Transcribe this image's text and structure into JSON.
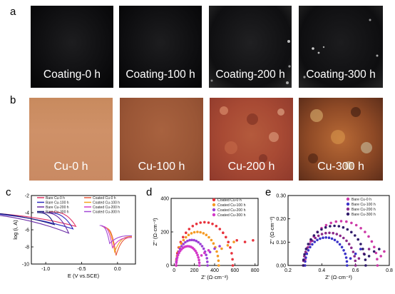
{
  "panels": {
    "a": {
      "letter": "a",
      "labels": [
        "Coating-0 h",
        "Coating-100 h",
        "Coating-200 h",
        "Coating-300 h"
      ]
    },
    "b": {
      "letter": "b",
      "labels": [
        "Cu-0 h",
        "Cu-100 h",
        "Cu-200 h",
        "Cu-300 h"
      ]
    },
    "c": {
      "letter": "c"
    },
    "d": {
      "letter": "d"
    },
    "e": {
      "letter": "e"
    }
  },
  "chart_data": [
    {
      "panel": "c",
      "type": "line",
      "xlabel": "E (V vs.SCE)",
      "ylabel": "log (i, A)",
      "xlim": [
        -1.2,
        0.25
      ],
      "ylim": [
        -10,
        -2
      ],
      "xticks": [
        -1.0,
        -0.5,
        0.0
      ],
      "xtick_labels": [
        "-1.0",
        "-0.5",
        "0.0"
      ],
      "yticks": [
        -2,
        -4,
        -6,
        -8,
        -10
      ],
      "ytick_labels": [
        "-2",
        "-4",
        "-6",
        "-8",
        "-10"
      ],
      "legend_position": "top",
      "series": [
        {
          "name": "Bare Cu-0 h",
          "color": "#e03366",
          "ecorr": -0.58,
          "icorr": -5.6,
          "anodic": [
            -3.8,
            -3.0
          ],
          "cathodic": [
            -3.9,
            -0.95
          ]
        },
        {
          "name": "Bare Cu-100 h",
          "color": "#2b2bbf",
          "ecorr": -0.62,
          "icorr": -5.9,
          "anodic": [
            -3.8,
            -3.0
          ],
          "cathodic": [
            -4.0,
            -1.0
          ]
        },
        {
          "name": "Bare Cu-200 h",
          "color": "#6a2ca6",
          "ecorr": -0.68,
          "icorr": -6.4,
          "anodic": [
            -3.8,
            -3.0
          ],
          "cathodic": [
            -4.0,
            -1.05
          ]
        },
        {
          "name": "Bare Cu-300 h",
          "color": "#1a1a7a",
          "ecorr": -0.88,
          "icorr": -5.4,
          "anodic": [
            -3.7,
            -2.9
          ],
          "cathodic": [
            -4.0,
            -1.12
          ]
        },
        {
          "name": "Coated Cu-0 h",
          "color": "#e8593a",
          "ecorr": -0.02,
          "icorr": -9.0,
          "anodic": [
            -6.9,
            0.2
          ],
          "cathodic": [
            -5.8,
            -0.18
          ]
        },
        {
          "name": "Coated Cu-100 h",
          "color": "#f5a11e",
          "ecorr": -0.04,
          "icorr": -8.6,
          "anodic": [
            -6.8,
            0.2
          ],
          "cathodic": [
            -5.7,
            -0.2
          ]
        },
        {
          "name": "Coated Cu-200 h",
          "color": "#d43cc8",
          "ecorr": -0.07,
          "icorr": -8.1,
          "anodic": [
            -6.9,
            0.2
          ],
          "cathodic": [
            -5.6,
            -0.22
          ]
        },
        {
          "name": "Coated Cu-300 h",
          "color": "#a24ad6",
          "ecorr": -0.11,
          "icorr": -7.6,
          "anodic": [
            -6.7,
            0.2
          ],
          "cathodic": [
            -5.5,
            -0.25
          ]
        }
      ]
    },
    {
      "panel": "d",
      "type": "scatter",
      "xlabel": "Z' (Ω·cm⁻²)",
      "ylabel": "Z'' (Ω·cm⁻²)",
      "xlim": [
        -30,
        830
      ],
      "ylim": [
        0,
        400
      ],
      "xticks": [
        0,
        200,
        400,
        600,
        800
      ],
      "yticks": [
        0,
        200,
        400
      ],
      "legend_position": "top-right",
      "series": [
        {
          "name": "Coated Cu-0 h",
          "color": "#e8323c",
          "x_start": 20,
          "x_end": 580,
          "peak": 258,
          "tail": [
            [
              620,
              150
            ],
            [
              700,
              140
            ],
            [
              780,
              150
            ]
          ]
        },
        {
          "name": "Coated Cu-100 h",
          "color": "#f59a23",
          "x_start": 20,
          "x_end": 440,
          "peak": 200,
          "tail": [
            [
              470,
              100
            ],
            [
              530,
              120
            ],
            [
              590,
              140
            ]
          ]
        },
        {
          "name": "Coated Cu-200 h",
          "color": "#9b3fd6",
          "x_start": 20,
          "x_end": 330,
          "peak": 152,
          "tail": [
            [
              355,
              80
            ],
            [
              400,
              100
            ],
            [
              450,
              115
            ]
          ]
        },
        {
          "name": "Coated Cu-300 h",
          "color": "#d438c8",
          "x_start": 20,
          "x_end": 250,
          "peak": 115,
          "tail": [
            [
              270,
              60
            ],
            [
              300,
              75
            ],
            [
              340,
              90
            ]
          ]
        }
      ]
    },
    {
      "panel": "e",
      "type": "scatter",
      "xlabel": "Z' (Ω·cm⁻²)",
      "ylabel": "Z'' (Ω·cm⁻²)",
      "xlim": [
        0.2,
        0.8
      ],
      "ylim": [
        0,
        0.3
      ],
      "xticks": [
        0.2,
        0.4,
        0.6,
        0.8
      ],
      "yticks": [
        0.0,
        0.1,
        0.2,
        0.3
      ],
      "ytick_labels": [
        "0.00",
        "0.10",
        "0.20",
        "0.30"
      ],
      "legend_position": "top-right",
      "series": [
        {
          "name": "Bare Cu-0 h",
          "color": "#cc3aa8",
          "x_start": 0.3,
          "x_end": 0.73,
          "peak": 0.19,
          "tail": [
            [
              0.75,
              0.04
            ],
            [
              0.77,
              0.06
            ]
          ]
        },
        {
          "name": "Bare Cu-100 h",
          "color": "#3a32c8",
          "x_start": 0.3,
          "x_end": 0.55,
          "peak": 0.12,
          "tail": [
            [
              0.57,
              0.03
            ],
            [
              0.6,
              0.05
            ],
            [
              0.63,
              0.07
            ]
          ]
        },
        {
          "name": "Bare Cu-200 h",
          "color": "#8a2a8a",
          "x_start": 0.29,
          "x_end": 0.6,
          "peak": 0.14,
          "tail": [
            [
              0.62,
              0.03
            ],
            [
              0.65,
              0.05
            ],
            [
              0.68,
              0.07
            ]
          ]
        },
        {
          "name": "Bare Cu-300 h",
          "color": "#2f1a6a",
          "x_start": 0.29,
          "x_end": 0.66,
          "peak": 0.17,
          "tail": [
            [
              0.68,
              0.04
            ],
            [
              0.71,
              0.06
            ],
            [
              0.74,
              0.07
            ]
          ]
        }
      ]
    }
  ]
}
